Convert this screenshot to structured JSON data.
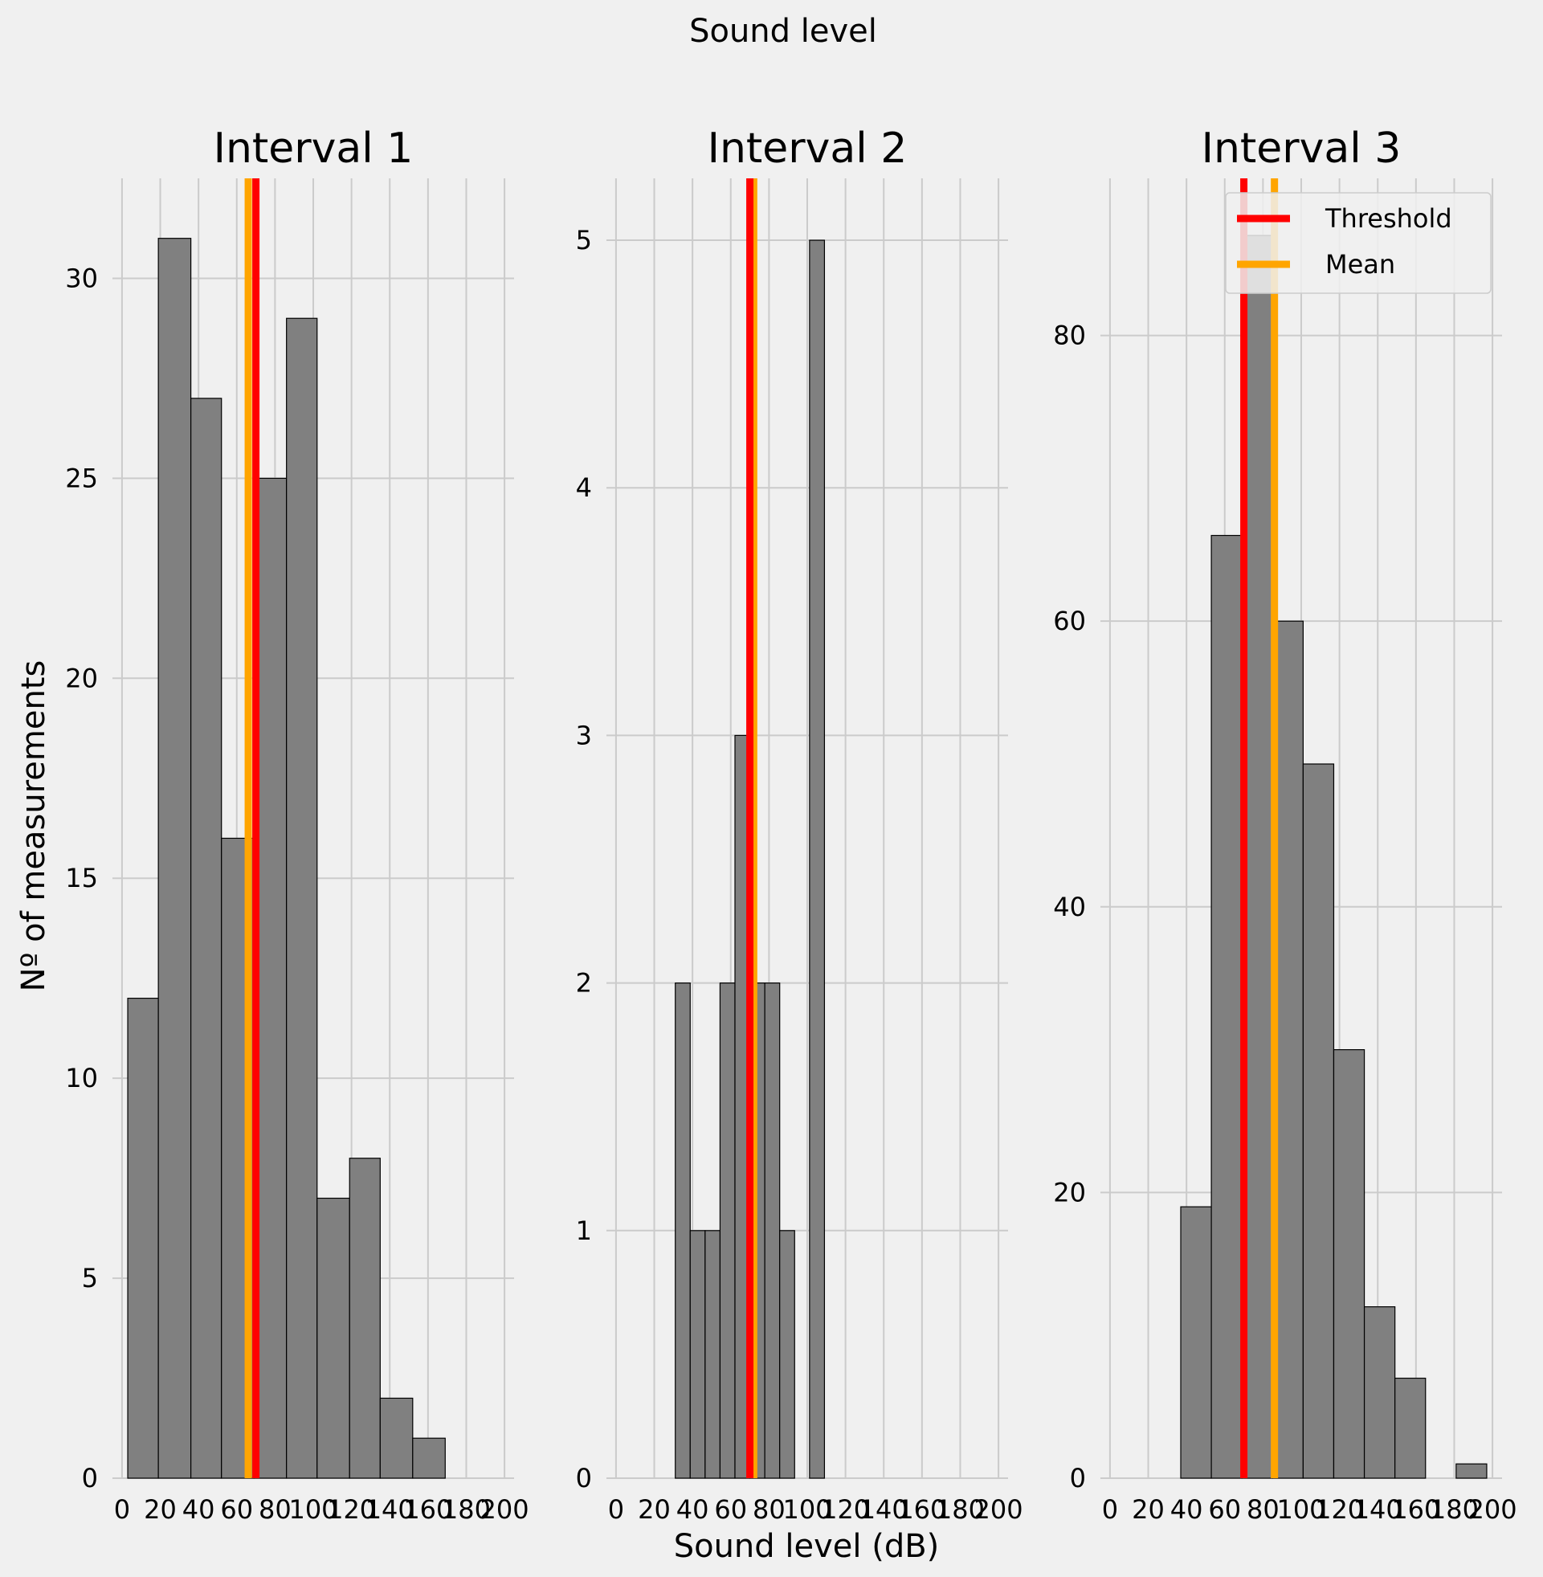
{
  "figure": {
    "suptitle": "Sound level",
    "xlabel": "Sound level (dB)",
    "ylabel": "Nº of measurements"
  },
  "colors": {
    "background": "#f0f0f0",
    "grid": "#cbcbcb",
    "bar_fill": "#808080",
    "bar_edge": "#000000",
    "threshold": "#ff0000",
    "mean": "#ffa500"
  },
  "chart_data": [
    {
      "type": "bar",
      "title": "Interval 1",
      "xlim": [
        -5,
        205
      ],
      "ylim": [
        0,
        32.5
      ],
      "xticks": [
        0,
        20,
        40,
        60,
        80,
        100,
        120,
        140,
        160,
        180,
        200
      ],
      "yticks": [
        0,
        5,
        10,
        15,
        20,
        25,
        30
      ],
      "bins": [
        [
          3,
          19
        ],
        [
          19,
          36
        ],
        [
          36,
          52
        ],
        [
          52,
          69
        ],
        [
          69,
          86
        ],
        [
          86,
          102
        ],
        [
          102,
          119
        ],
        [
          119,
          135
        ],
        [
          135,
          152
        ],
        [
          152,
          169
        ]
      ],
      "values": [
        12,
        31,
        27,
        16,
        25,
        29,
        7,
        8,
        2,
        1
      ],
      "threshold": 70,
      "mean": 66,
      "legend": null
    },
    {
      "type": "bar",
      "title": "Interval 2",
      "xlim": [
        -5,
        205
      ],
      "ylim": [
        0,
        5.25
      ],
      "xticks": [
        0,
        20,
        40,
        60,
        80,
        100,
        120,
        140,
        160,
        180,
        200
      ],
      "yticks": [
        0,
        1,
        2,
        3,
        4,
        5
      ],
      "bins": [
        [
          31,
          38.8
        ],
        [
          38.8,
          46.6
        ],
        [
          46.6,
          54.4
        ],
        [
          54.4,
          62.2
        ],
        [
          62.2,
          70
        ],
        [
          70,
          77.8
        ],
        [
          77.8,
          85.6
        ],
        [
          85.6,
          93.4
        ],
        [
          93.4,
          101.2
        ],
        [
          101.2,
          109
        ]
      ],
      "values": [
        2,
        1,
        1,
        2,
        3,
        2,
        2,
        1,
        0,
        5
      ],
      "threshold": 70,
      "mean": 72,
      "legend": null
    },
    {
      "type": "bar",
      "title": "Interval 3",
      "xlim": [
        -5,
        205
      ],
      "ylim": [
        0,
        91
      ],
      "xticks": [
        0,
        20,
        40,
        60,
        80,
        100,
        120,
        140,
        160,
        180,
        200
      ],
      "yticks": [
        0,
        20,
        40,
        60,
        80
      ],
      "bins": [
        [
          37,
          53
        ],
        [
          53,
          69
        ],
        [
          69,
          85
        ],
        [
          85,
          101
        ],
        [
          101,
          117
        ],
        [
          117,
          133
        ],
        [
          133,
          149
        ],
        [
          149,
          165
        ],
        [
          165,
          181
        ],
        [
          181,
          197
        ]
      ],
      "values": [
        19,
        66,
        87,
        60,
        50,
        30,
        12,
        7,
        0,
        1
      ],
      "threshold": 70,
      "mean": 86,
      "legend": {
        "position": "upper right",
        "entries": [
          "Threshold",
          "Mean"
        ]
      }
    }
  ]
}
